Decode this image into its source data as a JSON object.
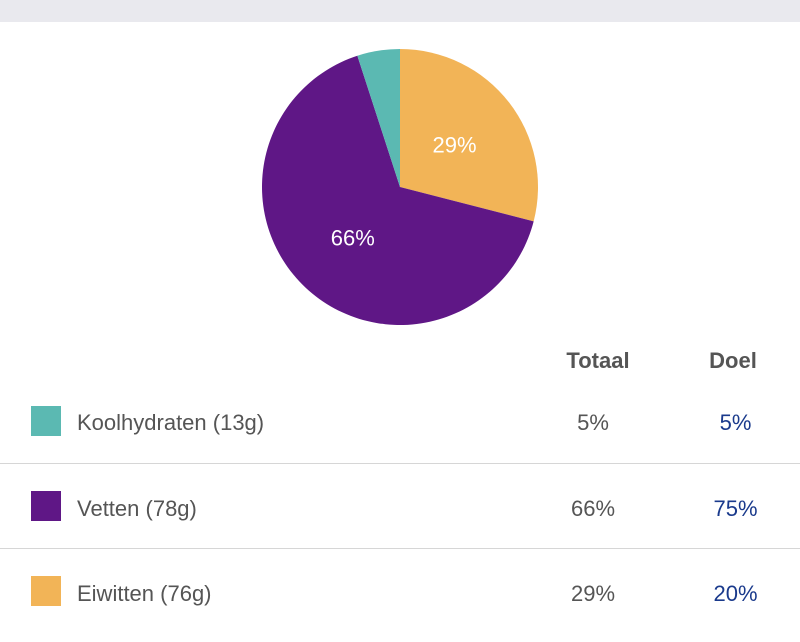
{
  "header": {
    "bg_color": "#e9e9ee"
  },
  "table": {
    "col_total": "Totaal",
    "col_goal": "Doel",
    "rows": [
      {
        "label": "Koolhydraten (13g)",
        "total": "5%",
        "goal": "5%",
        "color": "#5bb9b2"
      },
      {
        "label": "Vetten (78g)",
        "total": "66%",
        "goal": "75%",
        "color": "#5f1786"
      },
      {
        "label": "Eiwitten (76g)",
        "total": "29%",
        "goal": "20%",
        "color": "#f2b457"
      }
    ]
  },
  "chart_data": {
    "type": "pie",
    "categories": [
      "Eiwitten",
      "Vetten",
      "Koolhydraten"
    ],
    "values": [
      29,
      66,
      5
    ],
    "labels": [
      "29%",
      "66%",
      ""
    ],
    "colors": [
      "#f2b457",
      "#5f1786",
      "#5bb9b2"
    ],
    "start_angle_deg": 0,
    "direction": "clockwise"
  }
}
